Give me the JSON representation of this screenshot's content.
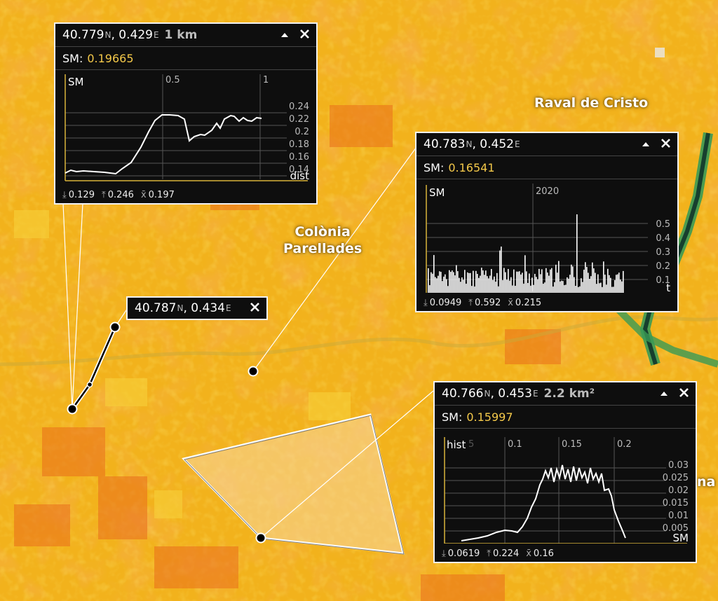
{
  "map": {
    "places": [
      {
        "name": "Raval de Cristo"
      },
      {
        "name": "Colònia\nParellades"
      },
      {
        "name": "na"
      }
    ],
    "colors": {
      "base": "#f2b21c",
      "warm": "#ee7a1e",
      "green": "#2a8f5a",
      "dark": "#12352a"
    }
  },
  "popups": {
    "line": {
      "lat": "40.779",
      "lat_sfx": "N",
      "lon": "0.429",
      "lon_sfx": "E",
      "extent": "1 km",
      "variable": "SM:",
      "value": "0.19665",
      "chart": {
        "y_label": "SM",
        "x_label": "dist",
        "x_ticks": [
          "0.5",
          "1"
        ],
        "y_ticks": [
          "0.24",
          "0.22",
          "0.2",
          "0.18",
          "0.16",
          "0.14"
        ]
      },
      "stats": {
        "min": "0.129",
        "max": "0.246",
        "mean": "0.197"
      }
    },
    "point": {
      "lat": "40.783",
      "lat_sfx": "N",
      "lon": "0.452",
      "lon_sfx": "E",
      "variable": "SM:",
      "value": "0.16541",
      "chart": {
        "y_label": "SM",
        "x_label": "t",
        "x_ticks": [
          "2020"
        ],
        "y_ticks": [
          "0.5",
          "0.4",
          "0.3",
          "0.2",
          "0.1"
        ]
      },
      "stats": {
        "min": "0.0949",
        "max": "0.592",
        "mean": "0.215"
      }
    },
    "polygon": {
      "lat": "40.766",
      "lat_sfx": "N",
      "lon": "0.453",
      "lon_sfx": "E",
      "extent": "2.2 km²",
      "variable": "SM:",
      "value": "0.15997",
      "chart": {
        "y_label": "hist",
        "x_label": "SM",
        "x_ticks": [
          "5",
          "0.1",
          "0.15",
          "0.2"
        ],
        "y_ticks": [
          "0.03",
          "0.025",
          "0.02",
          "0.015",
          "0.01",
          "0.005"
        ]
      },
      "stats": {
        "min": "0.0619",
        "max": "0.224",
        "mean": "0.16"
      }
    },
    "small": {
      "lat": "40.787",
      "lat_sfx": "N",
      "lon": "0.434",
      "lon_sfx": "E"
    }
  },
  "stat_glyphs": {
    "min": "⤓",
    "max": "⤒",
    "mean": "x̄"
  },
  "icons": {
    "collapse": "collapse-icon",
    "close": "close-icon"
  }
}
